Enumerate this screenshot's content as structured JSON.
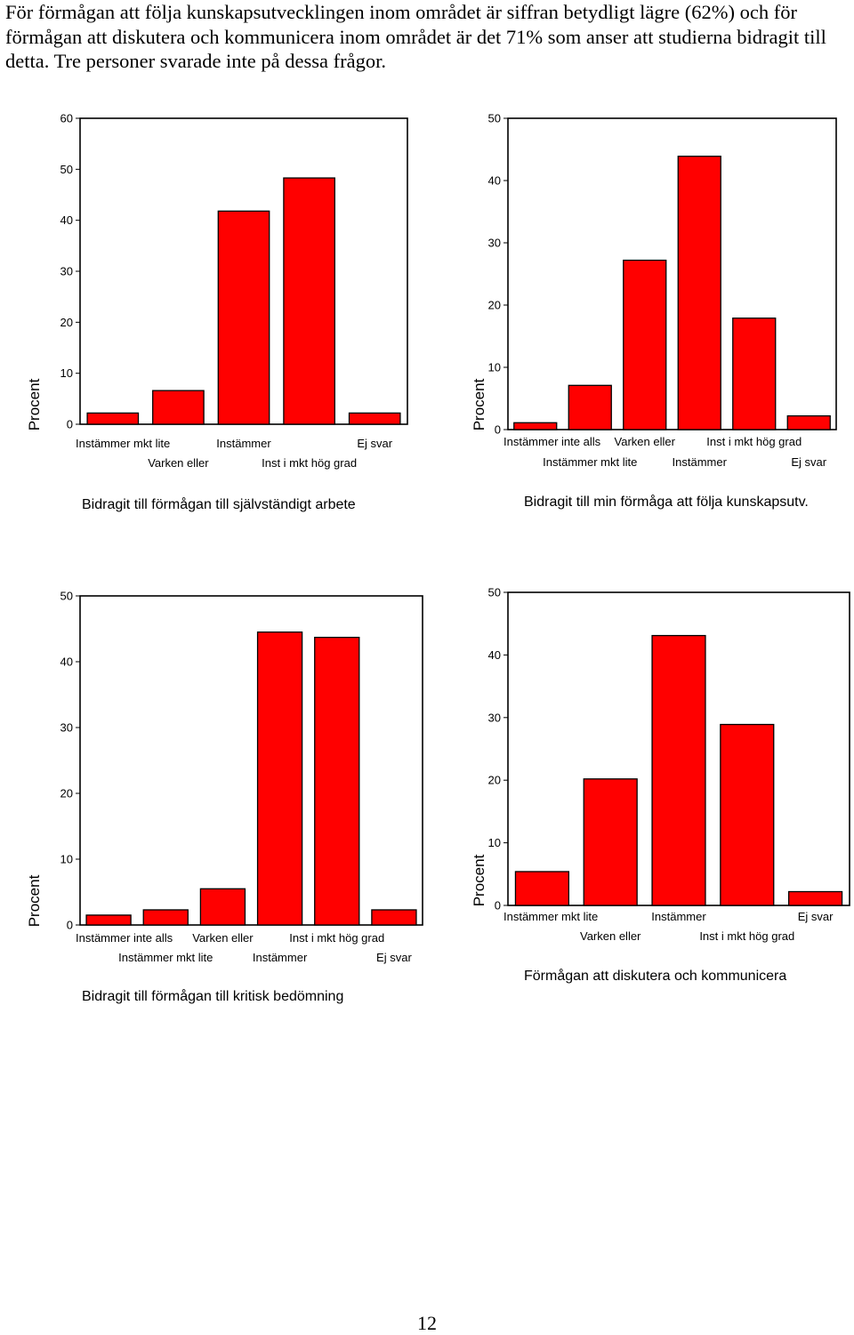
{
  "intro_text": "För förmågan att följa kunskapsutvecklingen inom området är siffran betydligt lägre (62%) och för förmågan att diskutera och kommunicera inom området är det 71% som anser att studierna bidragit till detta. Tre personer svarade inte på dessa frågor.",
  "page_number": "12",
  "bar_color": "#ff0000",
  "chart_data": [
    {
      "type": "bar",
      "title": "Bidragit till förmågan till självständigt arbete",
      "ylabel": "Procent",
      "categories": [
        "Instämmer mkt lite",
        "Varken eller",
        "Instämmer",
        "Inst i mkt hög grad",
        "Ej svar"
      ],
      "values": [
        2.2,
        6.6,
        41.8,
        48.3,
        2.2
      ],
      "ylim": [
        0,
        60
      ],
      "yticks": [
        "0",
        "10",
        "20",
        "30",
        "40",
        "50",
        "60"
      ]
    },
    {
      "type": "bar",
      "title": "Bidragit till min förmåga att följa kunskapsutv.",
      "ylabel": "Procent",
      "categories": [
        "Instämmer inte alls",
        "Instämmer mkt lite",
        "Varken eller",
        "Instämmer",
        "Inst i mkt hög grad",
        "Ej svar"
      ],
      "values": [
        1.1,
        7.1,
        27.2,
        43.9,
        17.9,
        2.2
      ],
      "ylim": [
        0,
        50
      ],
      "yticks": [
        "0",
        "10",
        "20",
        "30",
        "40",
        "50"
      ]
    },
    {
      "type": "bar",
      "title": "Bidragit till förmågan till kritisk bedömning",
      "ylabel": "Procent",
      "categories": [
        "Instämmer inte alls",
        "Instämmer mkt lite",
        "Varken eller",
        "Instämmer",
        "Inst i mkt hög grad",
        "Ej svar"
      ],
      "values": [
        1.5,
        2.3,
        5.5,
        44.5,
        43.7,
        2.3
      ],
      "ylim": [
        0,
        50
      ],
      "yticks": [
        "0",
        "10",
        "20",
        "30",
        "40",
        "50"
      ]
    },
    {
      "type": "bar",
      "title": "Förmågan att diskutera och kommunicera",
      "ylabel": "Procent",
      "categories": [
        "Instämmer mkt lite",
        "Varken eller",
        "Instämmer",
        "Inst i mkt hög grad",
        "Ej svar"
      ],
      "values": [
        5.4,
        20.2,
        43.1,
        28.9,
        2.2
      ],
      "ylim": [
        0,
        50
      ],
      "yticks": [
        "0",
        "10",
        "20",
        "30",
        "40",
        "50"
      ]
    }
  ]
}
